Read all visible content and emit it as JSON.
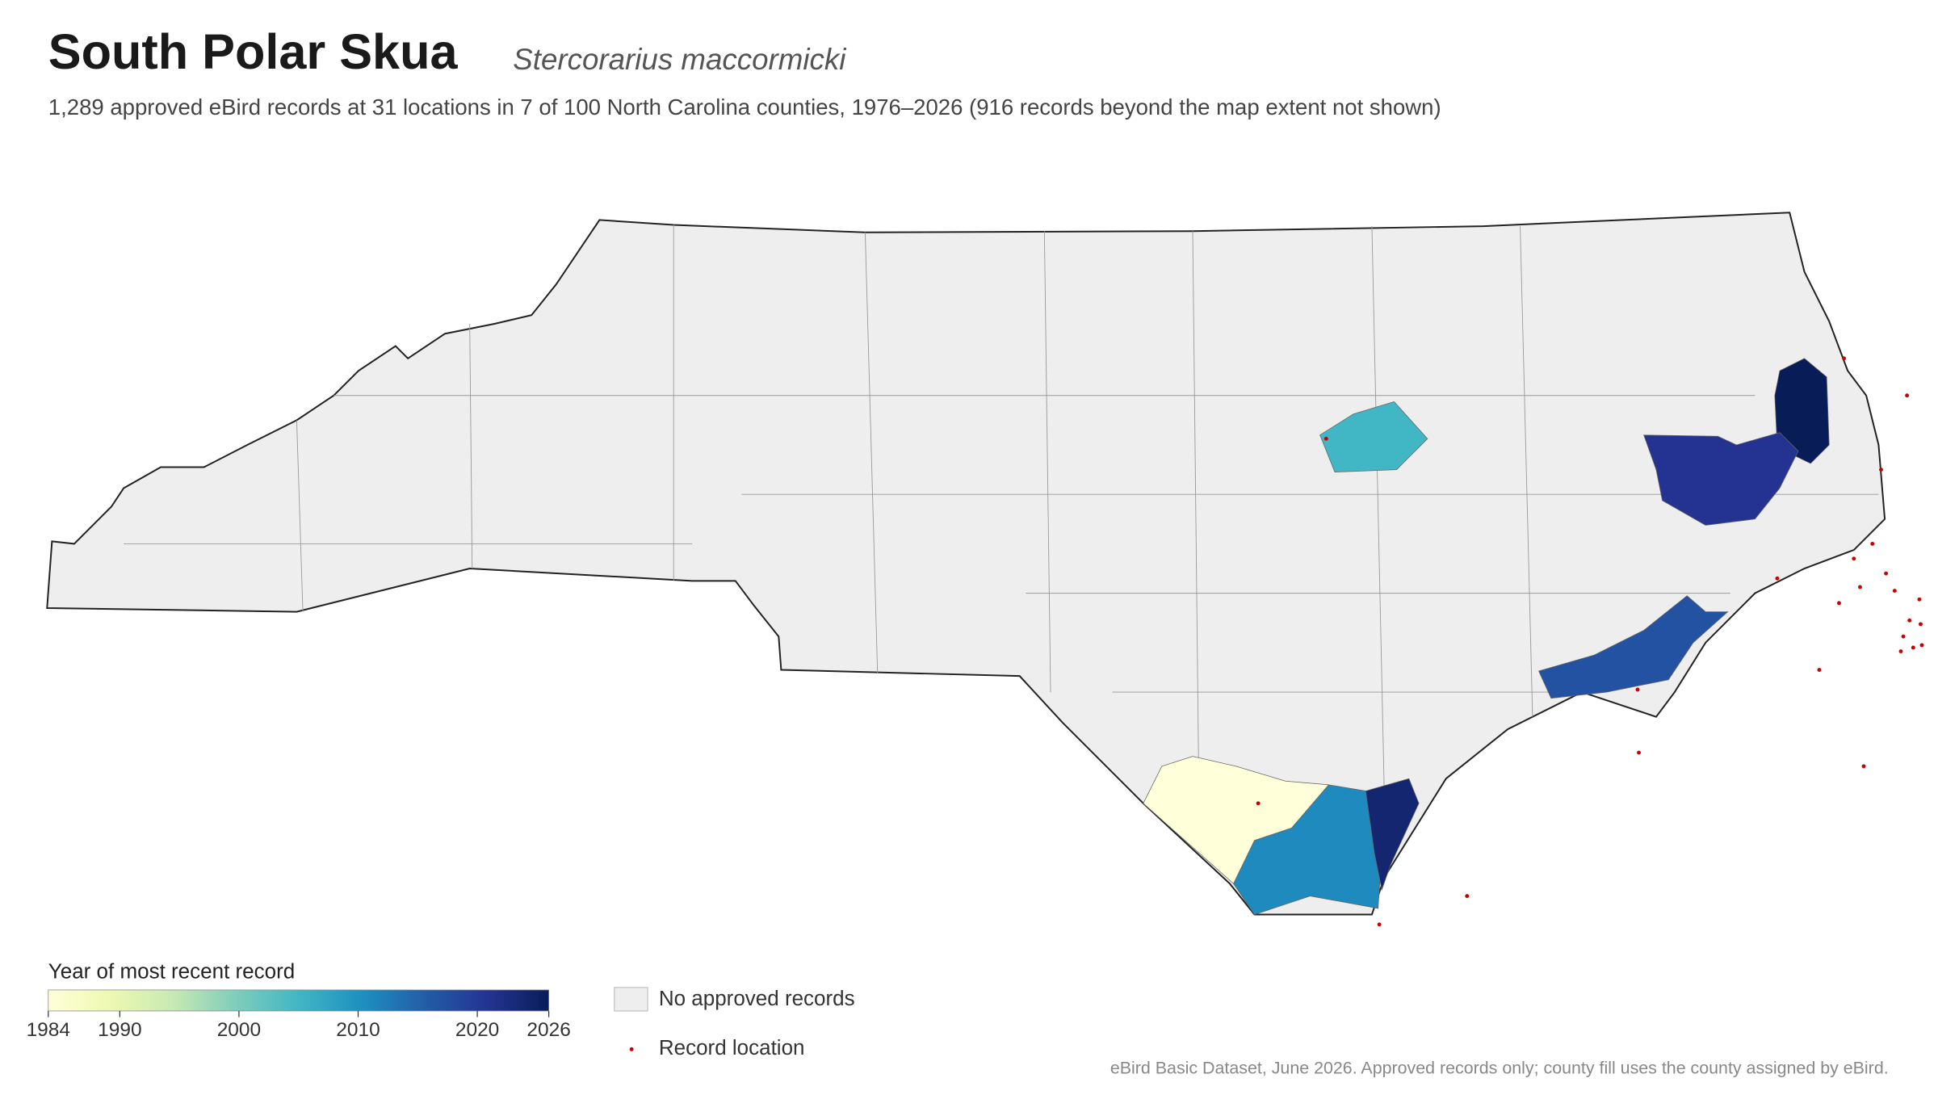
{
  "header": {
    "title": "South Polar Skua",
    "subtitle": "Stercorarius maccormicki",
    "description": "1,289 approved eBird records at 31 locations in 7 of 100 North Carolina counties, 1976–2026 (916 records beyond the map extent not shown)"
  },
  "map": {
    "county_years": [
      2005,
      2026,
      2021,
      2017,
      2011,
      2024,
      1984
    ],
    "no_data_color": "#eeeeee",
    "record_color": "#cc0000",
    "colormap": [
      "#ffffd9",
      "#edf8b1",
      "#c7e9b4",
      "#7fcdbb",
      "#41b6c4",
      "#1d91c0",
      "#225ea8",
      "#253494",
      "#081d58"
    ],
    "colorbar": {
      "title": "Year of most recent record",
      "lim": [
        1984,
        2026
      ],
      "ticks": [
        1984,
        1990,
        2000,
        2010,
        2020,
        2026
      ]
    },
    "legend": [
      {
        "label": "No approved records"
      },
      {
        "label": "Record location"
      }
    ]
  },
  "footer": "eBird Basic Dataset, June 2026. Approved records only; county fill uses the county assigned by eBird."
}
